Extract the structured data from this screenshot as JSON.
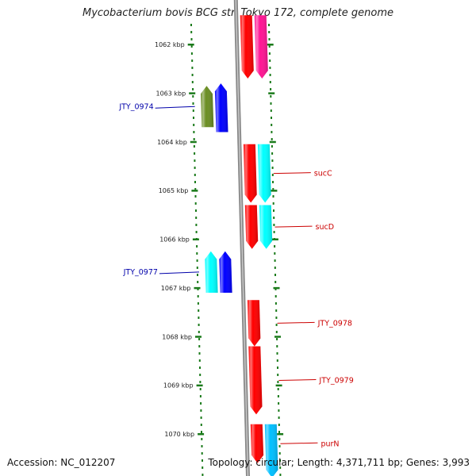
{
  "title": "Mycobacterium bovis BCG str. Tokyo 172, complete genome",
  "footer": {
    "accession": "Accession: NC_012207",
    "topology": "Topology: circular; Length: 4,371,711 bp; Genes: 3,993"
  },
  "colors": {
    "forward": "#ff0000",
    "reverse": "#0000ff",
    "backbone": "#888888",
    "ticks": "#1a7a1a",
    "label_forward": "#cc0000",
    "label_reverse": "#0000aa"
  },
  "chart_data": {
    "type": "genome-map",
    "x_unit": "kbp",
    "view_range_kbp": [
      1061.4,
      1070.9
    ],
    "ticks_kbp": [
      1062,
      1063,
      1064,
      1065,
      1066,
      1067,
      1068,
      1069,
      1070
    ],
    "tick_labels": [
      "1062 kbp",
      "1063 kbp",
      "1064 kbp",
      "1065 kbp",
      "1066 kbp",
      "1067 kbp",
      "1068 kbp",
      "1069 kbp",
      "1070 kbp"
    ],
    "features": [
      {
        "label": "",
        "start_kbp": 1061.4,
        "end_kbp": 1062.7,
        "strand": "+",
        "track": "cds",
        "color": "#ff0000",
        "shaded": true
      },
      {
        "label": "",
        "start_kbp": 1061.4,
        "end_kbp": 1062.7,
        "strand": "+",
        "track": "feature",
        "color": "#ff1493",
        "shaded": true
      },
      {
        "label": "JTY_0974",
        "start_kbp": 1062.85,
        "end_kbp": 1063.7,
        "strand": "-",
        "track": "feature",
        "color": "#6b8e23",
        "shaded": true
      },
      {
        "label": "",
        "start_kbp": 1062.8,
        "end_kbp": 1063.8,
        "strand": "-",
        "track": "cds",
        "color": "#0000ff",
        "shaded": true
      },
      {
        "label": "sucC",
        "start_kbp": 1064.05,
        "end_kbp": 1065.25,
        "strand": "+",
        "track": "cds",
        "color": "#ff0000",
        "shaded": true
      },
      {
        "label": "",
        "start_kbp": 1064.05,
        "end_kbp": 1065.25,
        "strand": "+",
        "track": "feature",
        "color": "#00ffff",
        "shaded": true
      },
      {
        "label": "sucD",
        "start_kbp": 1065.3,
        "end_kbp": 1066.2,
        "strand": "+",
        "track": "cds",
        "color": "#ff0000",
        "shaded": true
      },
      {
        "label": "",
        "start_kbp": 1065.3,
        "end_kbp": 1066.2,
        "strand": "+",
        "track": "feature",
        "color": "#00ffff",
        "shaded": true
      },
      {
        "label": "JTY_0977",
        "start_kbp": 1066.25,
        "end_kbp": 1067.1,
        "strand": "-",
        "track": "feature",
        "color": "#00ffff",
        "shaded": true
      },
      {
        "label": "",
        "start_kbp": 1066.25,
        "end_kbp": 1067.1,
        "strand": "-",
        "track": "cds",
        "color": "#0000ff",
        "shaded": true
      },
      {
        "label": "JTY_0978",
        "start_kbp": 1067.25,
        "end_kbp": 1068.2,
        "strand": "+",
        "track": "cds",
        "color": "#ff0000",
        "shaded": true
      },
      {
        "label": "JTY_0979",
        "start_kbp": 1068.2,
        "end_kbp": 1069.6,
        "strand": "+",
        "track": "cds",
        "color": "#ff0000",
        "shaded": true
      },
      {
        "label": "purN",
        "start_kbp": 1069.8,
        "end_kbp": 1070.6,
        "strand": "+",
        "track": "cds",
        "color": "#ff0000",
        "shaded": true
      },
      {
        "label": "",
        "start_kbp": 1069.8,
        "end_kbp": 1070.9,
        "strand": "+",
        "track": "feature",
        "color": "#00bfff",
        "shaded": true
      }
    ]
  }
}
